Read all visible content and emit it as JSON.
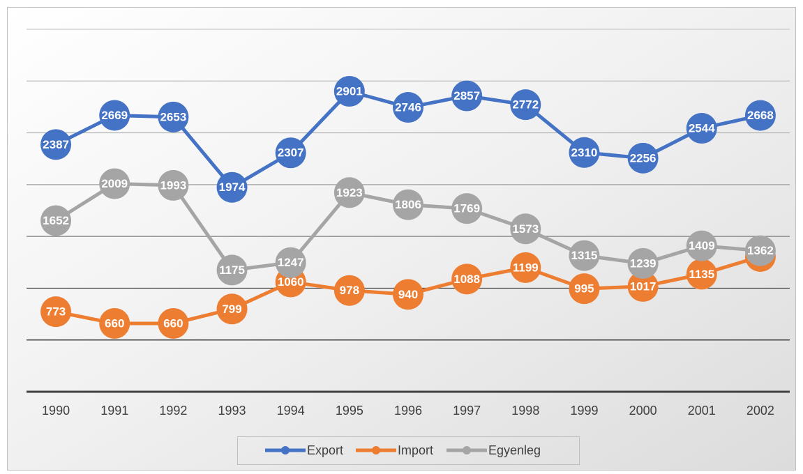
{
  "chart_data": {
    "type": "line",
    "categories": [
      "1990",
      "1991",
      "1992",
      "1993",
      "1994",
      "1995",
      "1996",
      "1997",
      "1998",
      "1999",
      "2000",
      "2001",
      "2002"
    ],
    "series": [
      {
        "name": "Export",
        "color": "#4472c4",
        "values": [
          2387,
          2669,
          2653,
          1974,
          2307,
          2901,
          2746,
          2857,
          2772,
          2310,
          2256,
          2544,
          2668
        ]
      },
      {
        "name": "Import",
        "color": "#ed7d31",
        "values": [
          773,
          660,
          660,
          799,
          1060,
          978,
          940,
          1088,
          1199,
          995,
          1017,
          1135,
          1306
        ]
      },
      {
        "name": "Egyenleg",
        "color": "#a5a5a5",
        "values": [
          1652,
          2009,
          1993,
          1175,
          1247,
          1923,
          1806,
          1769,
          1573,
          1315,
          1239,
          1409,
          1362
        ]
      }
    ],
    "ylim": [
      0,
      3500
    ],
    "yticks": [
      0,
      500,
      1000,
      1500,
      2000,
      2500,
      3000,
      3500
    ],
    "grid": true,
    "legend": "bottom"
  }
}
